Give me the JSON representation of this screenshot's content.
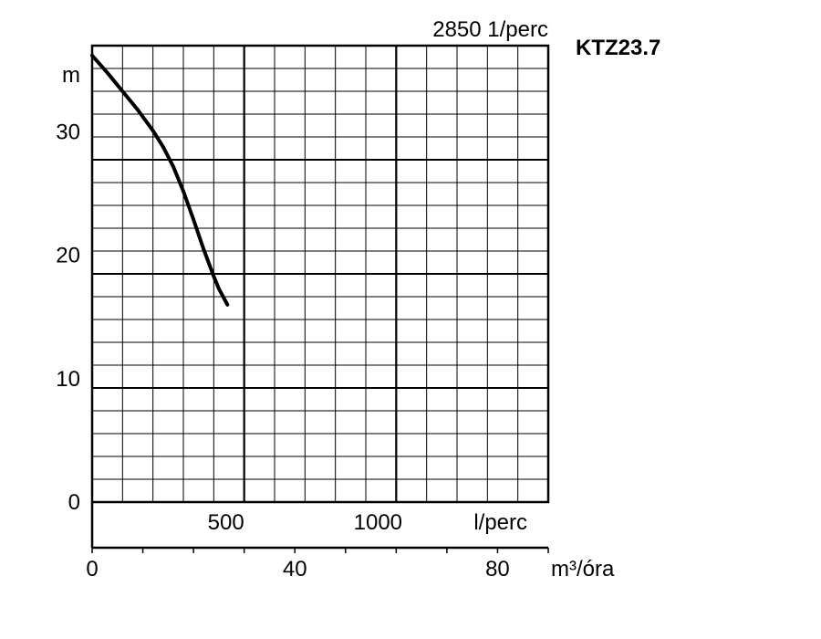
{
  "chart_data": {
    "type": "line",
    "title": "KTZ23.7",
    "speed_label": "2850 1/perc",
    "ylabel": "m",
    "xlabel": "m³/óra",
    "secondary_xlabel": "l/perc",
    "ylim": [
      0,
      37
    ],
    "xlim": [
      0,
      90
    ],
    "y_ticks": [
      0,
      10,
      20,
      30
    ],
    "x_ticks": [
      0,
      40,
      80
    ],
    "secondary_x_ticks": [
      500,
      1000
    ],
    "grid": true,
    "series": [
      {
        "x": [
          0,
          3,
          6,
          9,
          12,
          14,
          16,
          18,
          20,
          22,
          24,
          25,
          26.7
        ],
        "y": [
          36.2,
          34.8,
          33.3,
          31.8,
          30.1,
          28.8,
          27.2,
          25.2,
          22.9,
          20.5,
          18.3,
          17.3,
          16
        ]
      }
    ]
  }
}
